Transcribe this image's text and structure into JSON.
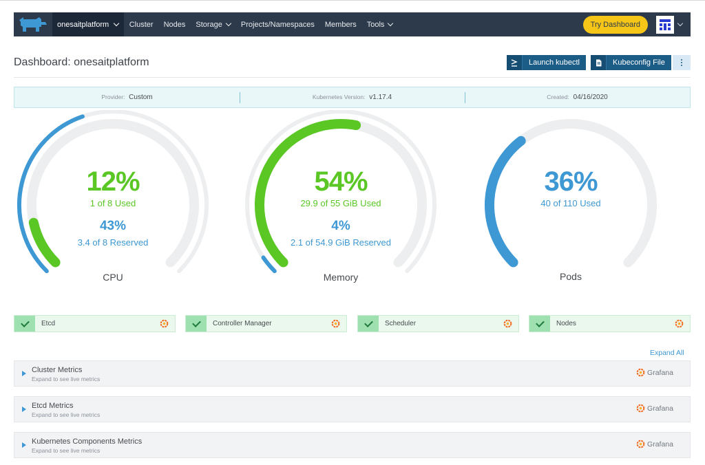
{
  "nav": {
    "cluster_name": "onesaitplatform",
    "items": [
      "Cluster",
      "Nodes",
      "Storage",
      "Projects/Namespaces",
      "Members",
      "Tools"
    ],
    "try_dashboard": "Try Dashboard"
  },
  "header": {
    "title": "Dashboard: onesaitplatform",
    "launch_kubectl": "Launch kubectl",
    "kubeconfig_file": "Kubeconfig File"
  },
  "info": {
    "provider_label": "Provider:",
    "provider_value": "Custom",
    "k8s_label": "Kubernetes Version:",
    "k8s_value": "v1.17.4",
    "created_label": "Created:",
    "created_value": "04/16/2020"
  },
  "gauges": {
    "cpu": {
      "percent": "12%",
      "used": "1 of 8 Used",
      "reserved_percent": "43%",
      "reserved": "3.4 of 8 Reserved",
      "title": "CPU",
      "used_fraction": 0.12,
      "reserved_fraction": 0.43
    },
    "memory": {
      "percent": "54%",
      "used": "29.9 of 55 GiB Used",
      "reserved_percent": "4%",
      "reserved": "2.1 of 54.9 GiB Reserved",
      "title": "Memory",
      "used_fraction": 0.54,
      "reserved_fraction": 0.04
    },
    "pods": {
      "percent": "36%",
      "used": "40 of 110 Used",
      "title": "Pods",
      "used_fraction": 0.36
    }
  },
  "components": [
    {
      "label": "Etcd"
    },
    {
      "label": "Controller Manager"
    },
    {
      "label": "Scheduler"
    },
    {
      "label": "Nodes"
    }
  ],
  "expand_all": "Expand All",
  "metrics": [
    {
      "title": "Cluster Metrics",
      "subtitle": "Expand to see live metrics",
      "link": "Grafana"
    },
    {
      "title": "Etcd Metrics",
      "subtitle": "Expand to see live metrics",
      "link": "Grafana"
    },
    {
      "title": "Kubernetes Components Metrics",
      "subtitle": "Expand to see live metrics",
      "link": "Grafana"
    }
  ],
  "colors": {
    "nav_bg": "#2d3a4b",
    "green": "#5ac725",
    "blue": "#3d98d3",
    "track": "#eceeef",
    "try_button": "#f5c518"
  },
  "icons": {
    "logo": "rancher-logo-icon",
    "grafana": "grafana-icon",
    "terminal": "terminal-icon",
    "file": "file-icon",
    "status": "check-icon"
  }
}
